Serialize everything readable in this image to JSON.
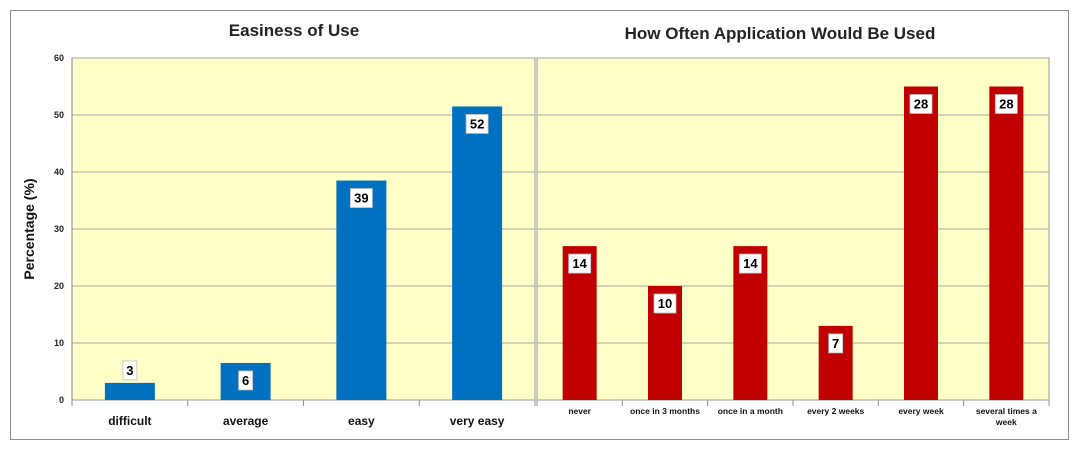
{
  "ylabel": "Percentage (%)",
  "chart_data": [
    {
      "type": "bar",
      "title": "Easiness of Use",
      "ylabel": "Percentage (%)",
      "ylim": [
        0,
        60
      ],
      "yticks": [
        0,
        10,
        20,
        30,
        40,
        50,
        60
      ],
      "categories": [
        "difficult",
        "average",
        "easy",
        "very easy"
      ],
      "values": [
        3,
        6.5,
        38.5,
        51.5
      ],
      "data_labels": [
        "3",
        "6",
        "39",
        "52"
      ],
      "bar_color": "#0070c0",
      "plot_background": "#ffffc8",
      "grid": true
    },
    {
      "type": "bar",
      "title": "How Often Application Would Be Used",
      "ylim": [
        0,
        60
      ],
      "categories": [
        "never",
        "once in 3 months",
        "once in a month",
        "every 2 weeks",
        "every week",
        "several times a week"
      ],
      "values": [
        27,
        20,
        27,
        13,
        55,
        55
      ],
      "data_labels": [
        "14",
        "10",
        "14",
        "7",
        "28",
        "28"
      ],
      "bar_color": "#c00000",
      "plot_background": "#ffffc8",
      "grid": true
    }
  ]
}
